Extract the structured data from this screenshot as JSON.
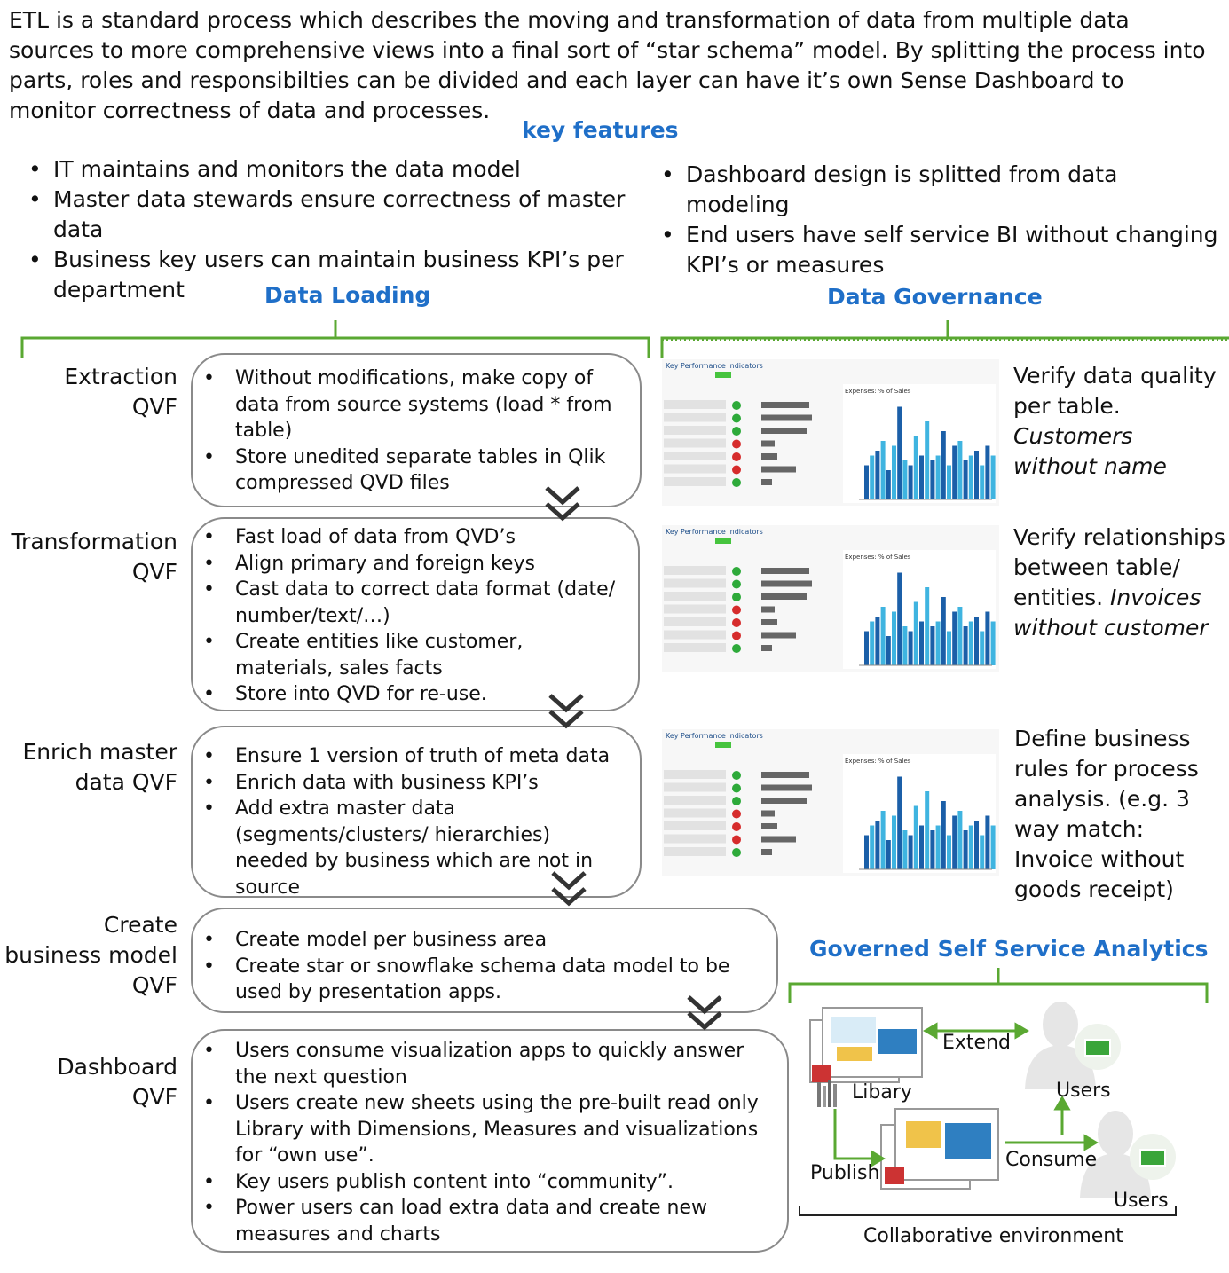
{
  "intro": "ETL is a standard process which describes the moving and transformation of data from multiple data sources to more comprehensive views into a final sort of “star schema” model. By splitting the process into parts, roles and responsibilties can be divided and each layer can have it’s own Sense Dashboard to monitor correctness of data and processes.",
  "key_features": {
    "title": "key features",
    "left": [
      "IT maintains and monitors the data model",
      "Master data stewards ensure correctness of master data",
      "Business key users can maintain business KPI’s per department"
    ],
    "right": [
      "Dashboard design is splitted from data modeling",
      "End users have self service BI without changing KPI’s or measures"
    ]
  },
  "sections": {
    "data_loading": "Data Loading",
    "data_governance": "Data Governance",
    "gssa": "Governed Self Service Analytics"
  },
  "stages": [
    {
      "label_lines": [
        "Extraction",
        "QVF"
      ],
      "items": [
        "Without modifications, make copy of data from source systems (load * from table)",
        "Store unedited separate tables in Qlik compressed QVD files"
      ]
    },
    {
      "label_lines": [
        "Transformation",
        "QVF"
      ],
      "items": [
        "Fast load of data from QVD’s",
        "Align primary and foreign keys",
        "Cast data to correct data format (date/ number/text/…)",
        "Create entities like customer, materials, sales facts",
        "Store into QVD for re-use."
      ]
    },
    {
      "label_lines": [
        "Enrich master",
        "data QVF"
      ],
      "items": [
        "Ensure 1 version of truth of meta data",
        "Enrich data with business KPI’s",
        "Add extra master data (segments/clusters/ hierarchies) needed by business which are not in source"
      ]
    },
    {
      "label_lines": [
        "Create",
        "business model",
        "QVF"
      ],
      "items": [
        "Create model per business area",
        "Create star or snowflake schema data model to be used by presentation apps."
      ]
    },
    {
      "label_lines": [
        "Dashboard",
        "QVF"
      ],
      "items": [
        "Users consume visualization apps to quickly answer the next question",
        "Users create new sheets using the pre-built read only Library with Dimensions, Measures and visualizations for “own use”.",
        "Key users publish content into “community”.",
        "Power users can load extra data and create new measures and charts"
      ]
    }
  ],
  "governance": [
    {
      "plain": "Verify data quality per table.",
      "italic": "Customers without name"
    },
    {
      "plain": "Verify relationships between table/ entities.",
      "italic": "Invoices without customer"
    },
    {
      "plain": "Define business rules for process analysis. (e.g. 3 way match: Invoice without goods receipt)",
      "italic": ""
    }
  ],
  "dashboard_thumb": {
    "title": "Key Performance Indicators",
    "chart_title": "Expenses: % of Sales",
    "status_colors": [
      "#2eaa3a",
      "#2eaa3a",
      "#2eaa3a",
      "#d62c2c",
      "#d62c2c",
      "#d62c2c",
      "#2eaa3a"
    ],
    "kpi_bars": [
      0.8,
      0.85,
      0.75,
      0.15,
      0.2,
      0.55,
      0.1
    ],
    "bars": [
      0.35,
      0.45,
      0.5,
      0.6,
      0.3,
      0.55,
      0.95,
      0.4,
      0.35,
      0.65,
      0.45,
      0.8,
      0.4,
      0.45,
      0.7,
      0.35,
      0.55,
      0.6,
      0.4,
      0.45,
      0.5,
      0.35,
      0.55,
      0.45
    ]
  },
  "collab": {
    "extend": "Extend",
    "library": "Libary",
    "users_top": "Users",
    "publish": "Publish",
    "consume": "Consume",
    "users_bottom": "Users",
    "environment": "Collaborative environment"
  },
  "colors": {
    "accent_blue": "#1f6fc8",
    "bracket_green": "#5aa832"
  }
}
